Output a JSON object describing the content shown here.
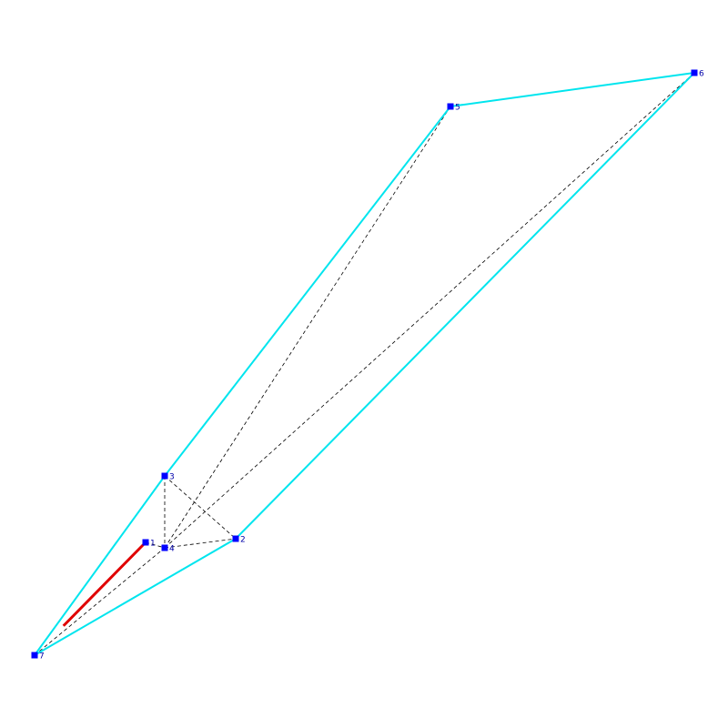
{
  "colors": {
    "background": "#ffffff",
    "hull": "#00e5ee",
    "highlight": "#e00000",
    "dashed": "#000000",
    "node": "#0000ff",
    "label": "#0000aa"
  },
  "nodes": [
    {
      "id": "1",
      "label": "1"
    },
    {
      "id": "2",
      "label": "2"
    },
    {
      "id": "3",
      "label": "3"
    },
    {
      "id": "4",
      "label": "4"
    },
    {
      "id": "5",
      "label": "5"
    },
    {
      "id": "6",
      "label": "6"
    },
    {
      "id": "7",
      "label": "7"
    }
  ],
  "hull_edges": [
    [
      "7",
      "3"
    ],
    [
      "3",
      "5"
    ],
    [
      "5",
      "6"
    ],
    [
      "6",
      "2"
    ],
    [
      "2",
      "7"
    ]
  ],
  "dashed_edges": [
    [
      "3",
      "4"
    ],
    [
      "3",
      "2"
    ],
    [
      "4",
      "2"
    ],
    [
      "4",
      "5"
    ],
    [
      "4",
      "6"
    ],
    [
      "7",
      "4"
    ],
    [
      "1",
      "4"
    ]
  ],
  "highlight_edges": [
    [
      "1",
      "7"
    ]
  ]
}
